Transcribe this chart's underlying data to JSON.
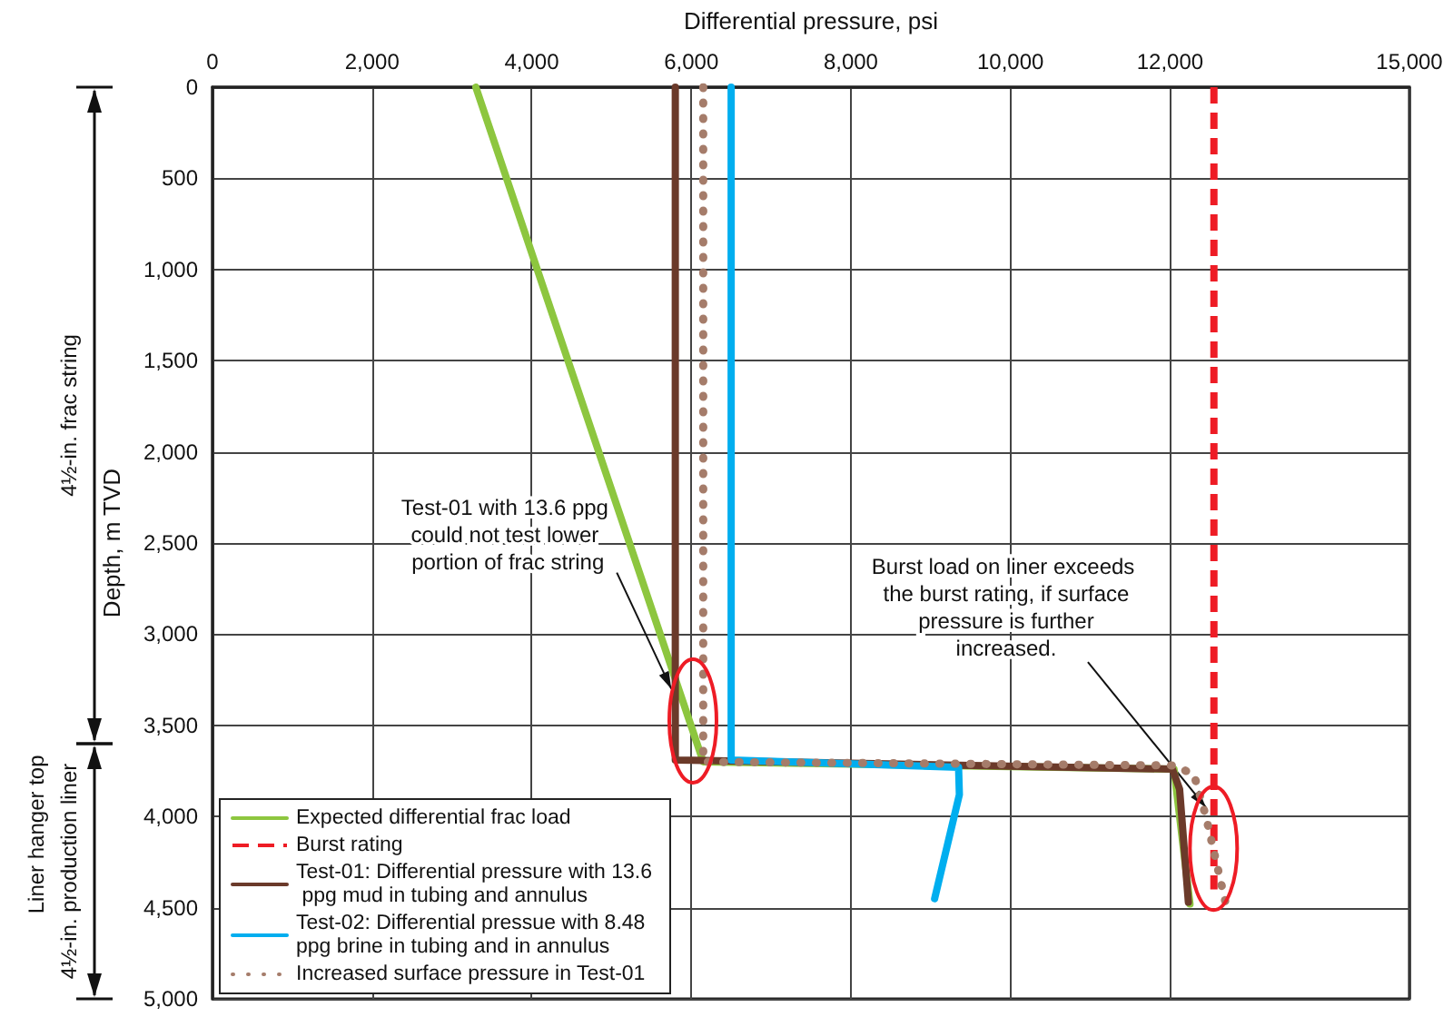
{
  "chart_data": {
    "type": "line",
    "xlabel": "Differential pressure, psi",
    "ylabel": "Depth, m TVD",
    "xlim": [
      0,
      15000
    ],
    "xticks": [
      0,
      {
        "value": 2000,
        "label": "2,000"
      },
      {
        "value": 4000,
        "label": "4,000"
      },
      {
        "value": 6000,
        "label": "6,000"
      },
      {
        "value": 8000,
        "label": "8,000"
      },
      {
        "value": 10000,
        "label": "10,000"
      },
      {
        "value": 12000,
        "label": "12,000"
      },
      {
        "value": 15000,
        "label": "15,000"
      }
    ],
    "ylim": [
      5000,
      0
    ],
    "yticks": [
      0,
      500,
      {
        "value": 1000,
        "label": "1,000"
      },
      {
        "value": 1500,
        "label": "1,500"
      },
      {
        "value": 2000,
        "label": "2,000"
      },
      {
        "value": 2500,
        "label": "2,500"
      },
      {
        "value": 3000,
        "label": "3,000"
      },
      {
        "value": 3500,
        "label": "3,500"
      },
      {
        "value": 4000,
        "label": "4,000"
      },
      {
        "value": 4500,
        "label": "4,500"
      },
      {
        "value": 5000,
        "label": "5,000"
      }
    ],
    "grid": true,
    "legend": "bottom left",
    "marker": "none",
    "series": [
      {
        "name": "Expected differential frac load",
        "color": "#8dc63f",
        "line_style": "solid",
        "x": [
          3300,
          6150,
          12050,
          12250
        ],
        "values": [
          0,
          3700,
          3740,
          4480
        ]
      },
      {
        "name": "Burst rating",
        "color": "#ee1c25",
        "line_style": "dashed",
        "x": [
          12550,
          12550
        ],
        "values": [
          0,
          4400
        ]
      },
      {
        "name": "Test-01: Differential pressure with 13.6 ppg mud in tubing and annulus",
        "color": "#6b3a2a",
        "line_style": "solid",
        "x": [
          5800,
          5800,
          12030,
          12120,
          12230
        ],
        "values": [
          0,
          3690,
          3740,
          3850,
          4470
        ]
      },
      {
        "name": "Test-02: Differential pressue with 8.48 ppg brine in tubing and in annulus",
        "color": "#00aeef",
        "line_style": "solid",
        "x": [
          6500,
          6500,
          9350,
          9360,
          9050
        ],
        "values": [
          0,
          3690,
          3730,
          3880,
          4450
        ]
      },
      {
        "name": "Increased surface pressure in Test-01",
        "color": "#a57c6a",
        "line_style": "dotted",
        "x": [
          6150,
          6150,
          12050,
          12300,
          12450,
          12700
        ],
        "values": [
          0,
          3700,
          3720,
          3770,
          4000,
          4480
        ]
      }
    ],
    "annotations": [
      {
        "text": "Test-01 with 13.6 ppg could not test lower portion of frac string",
        "x": 5750,
        "y": 3300
      },
      {
        "text": "Burst load on liner exceeds the burst rating, if surface pressure is further increased.",
        "x": 12450,
        "y": 3950
      },
      "4½-in. frac string",
      "Liner hanger top",
      "4½-in. production liner"
    ]
  }
}
